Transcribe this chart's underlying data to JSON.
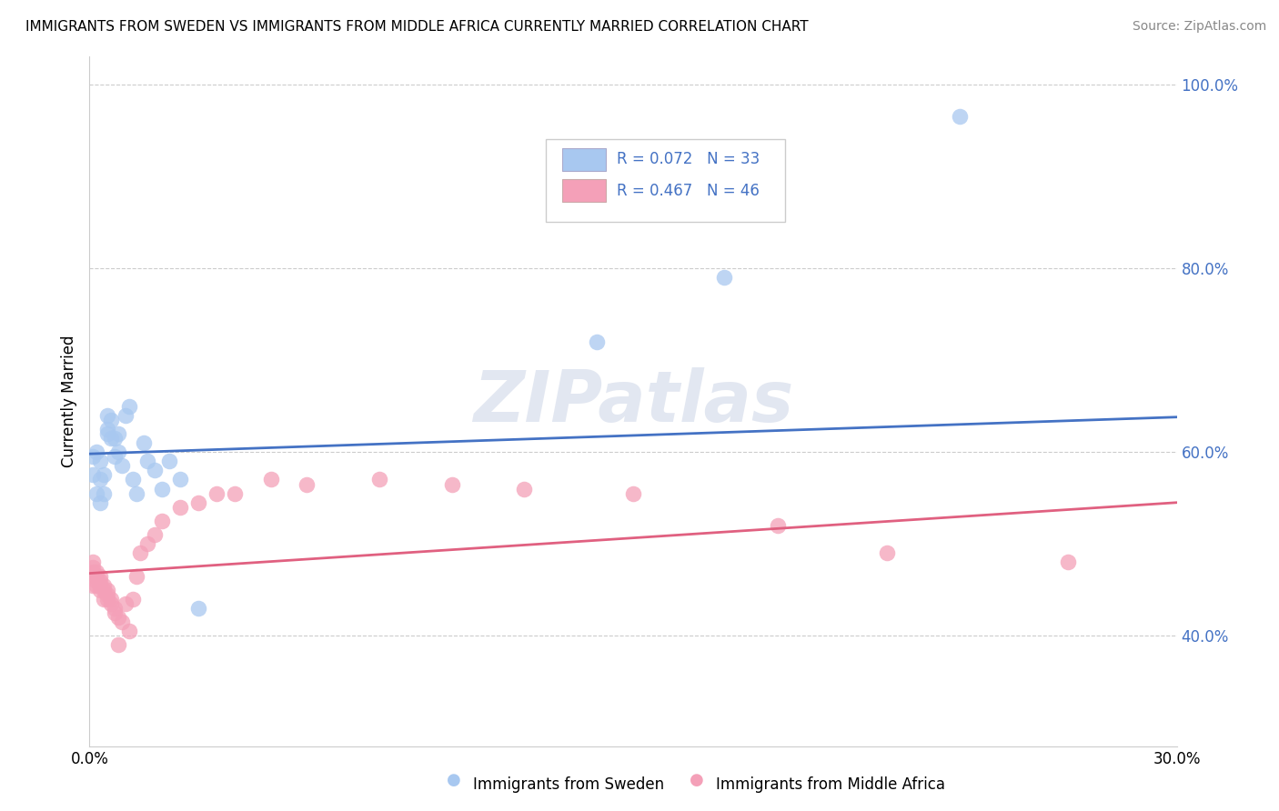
{
  "title": "IMMIGRANTS FROM SWEDEN VS IMMIGRANTS FROM MIDDLE AFRICA CURRENTLY MARRIED CORRELATION CHART",
  "source": "Source: ZipAtlas.com",
  "xlabel_bottom": [
    "Immigrants from Sweden",
    "Immigrants from Middle Africa"
  ],
  "ylabel": "Currently Married",
  "R_sweden": 0.072,
  "N_sweden": 33,
  "R_middle_africa": 0.467,
  "N_middle_africa": 46,
  "xlim": [
    0.0,
    0.3
  ],
  "ylim": [
    0.28,
    1.03
  ],
  "color_sweden": "#a8c8f0",
  "color_africa": "#f4a0b8",
  "line_color_sweden": "#4472c4",
  "line_color_africa": "#e06080",
  "legend_text_color": "#4472c4",
  "background_color": "#ffffff",
  "watermark": "ZIPatlas",
  "sweden_x": [
    0.001,
    0.001,
    0.002,
    0.002,
    0.003,
    0.003,
    0.003,
    0.004,
    0.004,
    0.005,
    0.005,
    0.005,
    0.006,
    0.006,
    0.007,
    0.007,
    0.008,
    0.008,
    0.009,
    0.01,
    0.011,
    0.012,
    0.013,
    0.015,
    0.016,
    0.018,
    0.02,
    0.022,
    0.025,
    0.03,
    0.14,
    0.175,
    0.24
  ],
  "sweden_y": [
    0.575,
    0.595,
    0.555,
    0.6,
    0.545,
    0.57,
    0.59,
    0.555,
    0.575,
    0.62,
    0.625,
    0.64,
    0.615,
    0.635,
    0.595,
    0.615,
    0.6,
    0.62,
    0.585,
    0.64,
    0.65,
    0.57,
    0.555,
    0.61,
    0.59,
    0.58,
    0.56,
    0.59,
    0.57,
    0.43,
    0.72,
    0.79,
    0.965
  ],
  "africa_x": [
    0.001,
    0.001,
    0.001,
    0.001,
    0.002,
    0.002,
    0.002,
    0.002,
    0.003,
    0.003,
    0.003,
    0.003,
    0.004,
    0.004,
    0.004,
    0.005,
    0.005,
    0.005,
    0.006,
    0.006,
    0.007,
    0.007,
    0.008,
    0.008,
    0.009,
    0.01,
    0.011,
    0.012,
    0.013,
    0.014,
    0.016,
    0.018,
    0.02,
    0.025,
    0.03,
    0.035,
    0.04,
    0.05,
    0.06,
    0.08,
    0.1,
    0.12,
    0.15,
    0.19,
    0.22,
    0.27
  ],
  "africa_y": [
    0.455,
    0.47,
    0.475,
    0.48,
    0.455,
    0.46,
    0.465,
    0.47,
    0.45,
    0.455,
    0.46,
    0.465,
    0.44,
    0.45,
    0.455,
    0.44,
    0.445,
    0.45,
    0.435,
    0.44,
    0.425,
    0.43,
    0.42,
    0.39,
    0.415,
    0.435,
    0.405,
    0.44,
    0.465,
    0.49,
    0.5,
    0.51,
    0.525,
    0.54,
    0.545,
    0.555,
    0.555,
    0.57,
    0.565,
    0.57,
    0.565,
    0.56,
    0.555,
    0.52,
    0.49,
    0.48
  ],
  "yticks": [
    0.4,
    0.6,
    0.8,
    1.0
  ],
  "ytick_labels": [
    "40.0%",
    "60.0%",
    "80.0%",
    "100.0%"
  ],
  "xticks": [
    0.0,
    0.05,
    0.1,
    0.15,
    0.2,
    0.25,
    0.3
  ],
  "xtick_labels": [
    "0.0%",
    "",
    "",
    "",
    "",
    "",
    "30.0%"
  ],
  "sweden_line_y0": 0.598,
  "sweden_line_y1": 0.638,
  "africa_line_y0": 0.468,
  "africa_line_y1": 0.545
}
